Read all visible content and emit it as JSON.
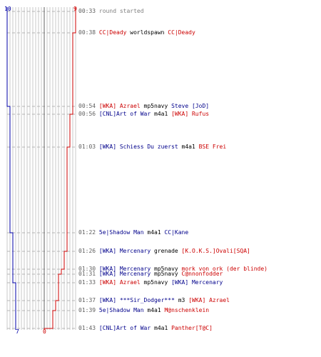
{
  "colors": {
    "team_blue": "#0000aa",
    "team_red": "#cc0000",
    "grid": "#c8c8c8",
    "center_line": "#606060",
    "dash": "#b4b4b4"
  },
  "graph": {
    "blue_start_count": "10",
    "red_start_count": "9",
    "blue_end_count": "7",
    "red_end_count": "0"
  },
  "events": [
    {
      "time": "00:33",
      "kind": "system",
      "text": "round started"
    },
    {
      "time": "00:38",
      "kind": "suicide",
      "victim": "CC|Deady",
      "victim_team": "red",
      "weapon": "worldspawn",
      "killer": "CC|Deady",
      "killer_team": "red"
    },
    {
      "time": "00:54",
      "kind": "kill",
      "killer": "[WKA] Azrael",
      "killer_team": "red",
      "weapon": "mp5navy",
      "victim": "Steve [JoD]",
      "victim_team": "blue"
    },
    {
      "time": "00:56",
      "kind": "kill",
      "killer": "[CNL]Art of War",
      "killer_team": "blue",
      "weapon": "m4a1",
      "victim": "[WKA] Rufus",
      "victim_team": "red"
    },
    {
      "time": "01:03",
      "kind": "kill",
      "killer": "[WKA] Schiess Du zuerst",
      "killer_team": "blue",
      "weapon": "m4a1",
      "victim": "BSE Frei",
      "victim_team": "red"
    },
    {
      "time": "01:22",
      "kind": "kill",
      "killer": "5e|Shadow Man",
      "killer_team": "blue",
      "weapon": "m4a1",
      "victim": "CC|Kane",
      "victim_team": "blue"
    },
    {
      "time": "01:26",
      "kind": "kill",
      "killer": "[WKA] Mercenary",
      "killer_team": "blue",
      "weapon": "grenade",
      "victim": "[K.O.K.S.]Ovali[SQA]",
      "victim_team": "red"
    },
    {
      "time": "01:30",
      "kind": "kill",
      "killer": "[WKA] Mercenary",
      "killer_team": "blue",
      "weapon": "mp5navy",
      "victim": "mork von ork (der blinde)",
      "victim_team": "red"
    },
    {
      "time": "01:31",
      "kind": "kill",
      "killer": "[WKA] Mercenary",
      "killer_team": "blue",
      "weapon": "mp5navy",
      "victim": "C@nnonfodder",
      "victim_team": "red"
    },
    {
      "time": "01:33",
      "kind": "kill",
      "killer": "[WKA] Azrael",
      "killer_team": "red",
      "weapon": "mp5navy",
      "victim": "[WKA] Mercenary",
      "victim_team": "blue"
    },
    {
      "time": "01:37",
      "kind": "kill",
      "killer": "[WKA] ***Sir_Dodger***",
      "killer_team": "blue",
      "weapon": "m3",
      "victim": "[WKA] Azrael",
      "victim_team": "red"
    },
    {
      "time": "01:39",
      "kind": "kill",
      "killer": "5e|Shadow Man",
      "killer_team": "blue",
      "weapon": "m4a1",
      "victim": "M@nschenklein",
      "victim_team": "red"
    },
    {
      "time": "01:43",
      "kind": "kill",
      "killer": "[CNL]Art of War",
      "killer_team": "blue",
      "weapon": "m4a1",
      "victim": "Panther[T@C]",
      "victim_team": "red"
    }
  ]
}
